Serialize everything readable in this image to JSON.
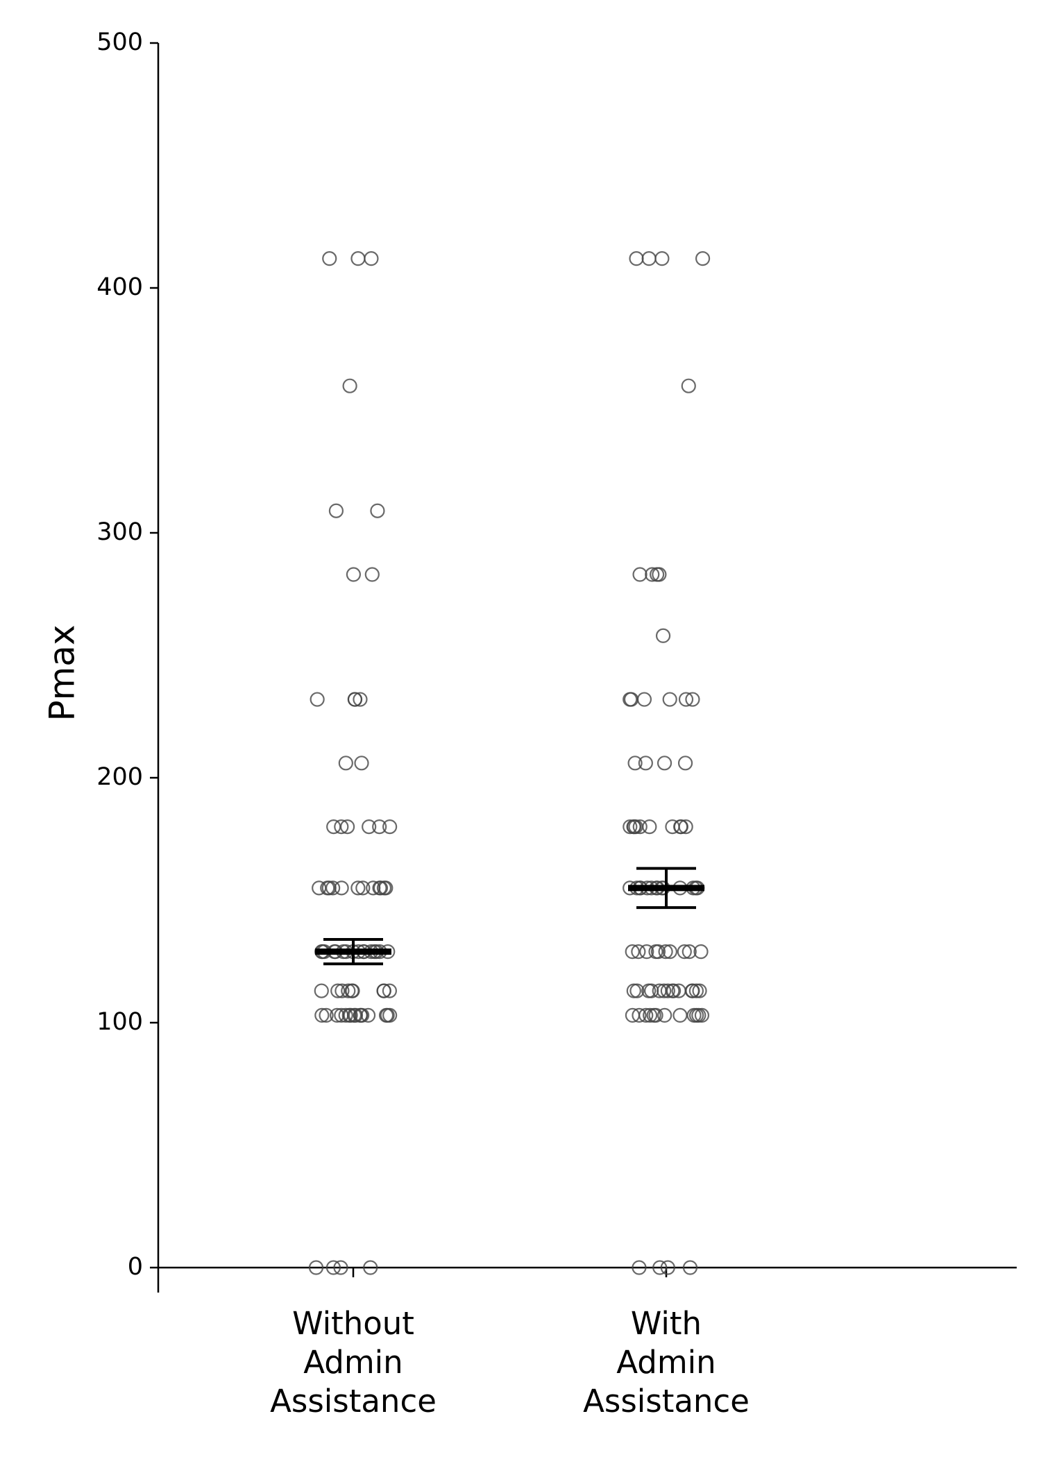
{
  "chart_data": {
    "type": "strip",
    "ylabel": "Pmax",
    "categories": [
      "Without\nAdmin\nAssistance",
      "With\nAdmin\nAssistance"
    ],
    "values": [
      [
        412,
        412,
        412,
        360,
        309,
        309,
        283,
        283,
        232,
        232,
        232,
        232,
        206,
        206,
        180,
        180,
        180,
        180,
        180,
        180,
        155,
        155,
        155,
        155,
        155,
        155,
        155,
        155,
        155,
        155,
        155,
        155,
        129,
        129,
        129,
        129,
        129,
        129,
        129,
        129,
        129,
        129,
        129,
        129,
        129,
        129,
        129,
        129,
        113,
        113,
        113,
        113,
        113,
        113,
        113,
        113,
        113,
        103,
        103,
        103,
        103,
        103,
        103,
        103,
        103,
        103,
        103,
        103,
        103,
        103,
        103,
        103,
        103,
        0,
        0,
        0,
        0
      ],
      [
        412,
        412,
        412,
        412,
        360,
        283,
        283,
        283,
        283,
        258,
        232,
        232,
        232,
        232,
        232,
        232,
        206,
        206,
        206,
        206,
        180,
        180,
        180,
        180,
        180,
        180,
        180,
        180,
        180,
        180,
        155,
        155,
        155,
        155,
        155,
        155,
        155,
        155,
        155,
        155,
        155,
        155,
        155,
        155,
        129,
        129,
        129,
        129,
        129,
        129,
        129,
        129,
        129,
        129,
        113,
        113,
        113,
        113,
        113,
        113,
        113,
        113,
        113,
        113,
        113,
        113,
        113,
        113,
        103,
        103,
        103,
        103,
        103,
        103,
        103,
        103,
        103,
        103,
        103,
        103,
        0,
        0,
        0,
        0
      ]
    ],
    "medians": [
      129,
      155
    ],
    "errors": [
      5,
      8
    ],
    "marker_color": "#444444",
    "ylim": [
      0,
      500
    ],
    "yticks": [
      0,
      100,
      200,
      300,
      400,
      500
    ]
  }
}
